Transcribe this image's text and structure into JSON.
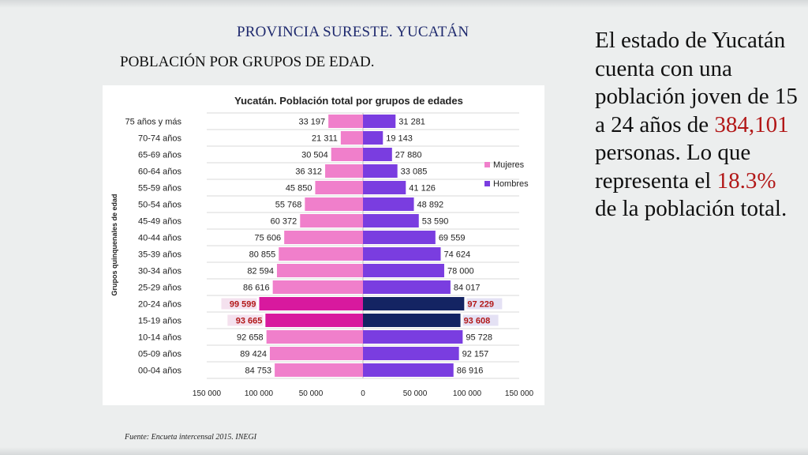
{
  "header": {
    "province_title": "PROVINCIA SURESTE. YUCATÁN",
    "section_title": "POBLACIÓN POR GRUPOS DE EDAD."
  },
  "source": "Fuente: Encueta intercensal  2015. INEGI",
  "side_text": {
    "part1": "El estado de Yucatán cuenta con una población joven de 15 a 24 años de ",
    "highlight1": "384,101",
    "part2": " personas. Lo que representa el ",
    "highlight2": "18.3%",
    "part3": " de la población total."
  },
  "colors": {
    "mujeres": "#f07fcb",
    "hombres": "#7a3de0",
    "mujeres_highlight": "#d8199e",
    "hombres_highlight": "#142463",
    "highlight_text": "#b21818"
  },
  "chart_data": {
    "type": "bar",
    "orientation": "horizontal",
    "title": "Yucatán. Población total por grupos de edades",
    "ylabel": "Grupos quinquenales de edad",
    "xlim": [
      -150000,
      150000
    ],
    "x_ticks": [
      "150 000",
      "100 000",
      "50 000",
      "0",
      "50 000",
      "100 000",
      "150 000"
    ],
    "legend_position": "right",
    "categories": [
      "75 años y más",
      "70-74 años",
      "65-69 años",
      "60-64 años",
      "55-59 años",
      "50-54 años",
      "45-49 años",
      "40-44 años",
      "35-39 años",
      "30-34 años",
      "25-29 años",
      "20-24 años",
      "15-19 años",
      "10-14 años",
      "05-09 años",
      "00-04 años"
    ],
    "series": [
      {
        "name": "Mujeres",
        "side": "left",
        "values": [
          33197,
          21311,
          30504,
          36312,
          45850,
          55768,
          60372,
          75606,
          80855,
          82594,
          86616,
          99599,
          93665,
          92658,
          89424,
          84753
        ],
        "labels": [
          "33 197",
          "21 311",
          "30 504",
          "36 312",
          "45 850",
          "55 768",
          "60 372",
          "75 606",
          "80 855",
          "82 594",
          "86 616",
          "99 599",
          "93 665",
          "92 658",
          "89 424",
          "84 753"
        ]
      },
      {
        "name": "Hombres",
        "side": "right",
        "values": [
          31281,
          19143,
          27880,
          33085,
          41126,
          48892,
          53590,
          69559,
          74624,
          78000,
          84017,
          97229,
          93608,
          95728,
          92157,
          86916
        ],
        "labels": [
          "31 281",
          "19 143",
          "27 880",
          "33 085",
          "41 126",
          "48 892",
          "53 590",
          "69 559",
          "74 624",
          "78 000",
          "84 017",
          "97 229",
          "93 608",
          "95 728",
          "92 157",
          "86 916"
        ]
      }
    ],
    "highlighted_categories": [
      "20-24 años",
      "15-19 años"
    ]
  }
}
